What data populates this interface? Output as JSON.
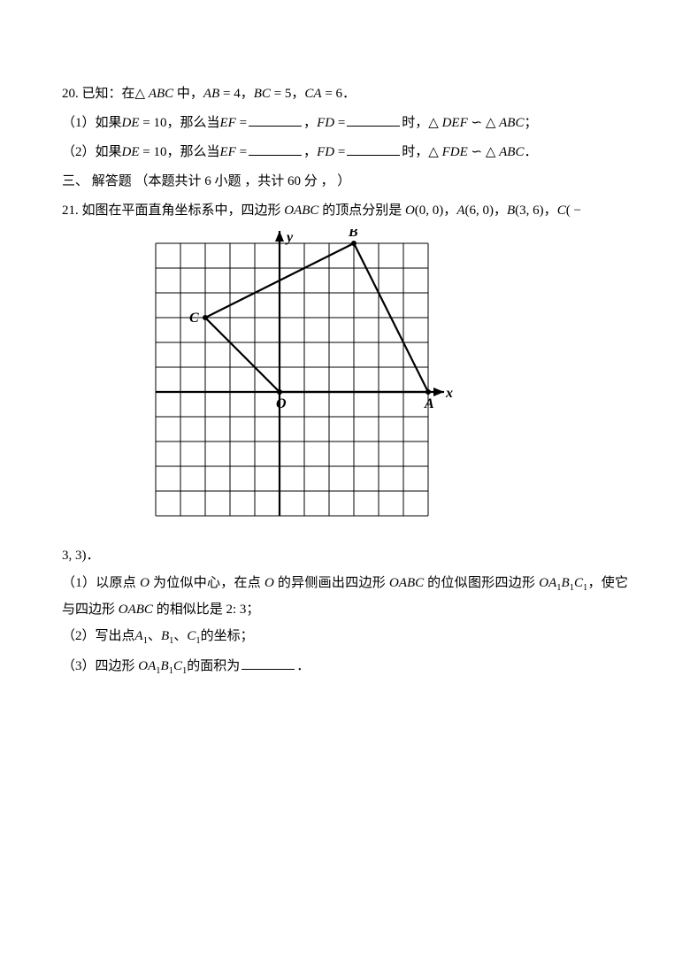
{
  "q20": {
    "num": "20.",
    "stem_a": "已知：在",
    "tri": "△",
    "ABC": "ABC",
    "stem_b": "中，",
    "AB": "AB",
    "eq4": " = 4",
    "comma": "，",
    "BC": "BC",
    "eq5": " = 5",
    "CA": "CA",
    "eq6": " = 6",
    "period": "．",
    "p1_a": "（1）如果",
    "DE": "DE",
    "eq10": " = 10",
    "p1_b": "，那么当",
    "EF": "EF",
    "eqsign": " =",
    "FD": "FD",
    "p1_c": "时，",
    "DEF": "DEF",
    "sim": " ∽ ",
    "semi": "；",
    "p2_a": "（2）如果",
    "FDE": "FDE"
  },
  "section3": {
    "label": " 三、 解答题 （本题共计 6 小题 ，共计 60 分 ， ）"
  },
  "q21": {
    "num": "21.",
    "stem_a": "如图在平面直角坐标系中，四边形",
    "OABC": "OABC",
    "stem_b": "的顶点分别是",
    "O": "O",
    "O_coord": "(0, 0)",
    "A": "A",
    "A_coord": "(6, 0)",
    "B": "B",
    "B_coord": "(3, 6)",
    "C": "C",
    "C_coord_open": "( −",
    "C_coord_close": "3, 3)",
    "period": "．",
    "p1_a": "（1）以原点",
    "p1_b": "为位似中心，在点",
    "p1_c": "的异侧画出四边形",
    "p1_d": "的位似图形四边形",
    "OA1B1C1": "OA",
    "sub1": "1",
    "B1": "B",
    "C1": "C",
    "p1_e": "，使它与四边形",
    "p1_f": "的相似比是",
    "ratio": "2: 3",
    "semi": "；",
    "p2_a": "（2）写出点",
    "A1": "A",
    "p2_b": "、",
    "p2_c": "的坐标；",
    "p3_a": "（3）四边形",
    "p3_b": "的面积为"
  },
  "figure": {
    "grid_count": 11,
    "cell": 28,
    "origin_col": 5,
    "origin_row": 6,
    "labels": {
      "y": "y",
      "x": "x",
      "O": "O",
      "A": "A",
      "B": "B",
      "C": "C"
    },
    "points": {
      "O": [
        0,
        0
      ],
      "A": [
        6,
        0
      ],
      "B": [
        3,
        6
      ],
      "C": [
        -3,
        3
      ]
    },
    "colors": {
      "grid": "#000000",
      "axis": "#000000",
      "shape": "#000000",
      "bg": "#ffffff"
    },
    "grid_stroke": 1,
    "axis_stroke": 2.2,
    "shape_stroke": 2.2
  }
}
